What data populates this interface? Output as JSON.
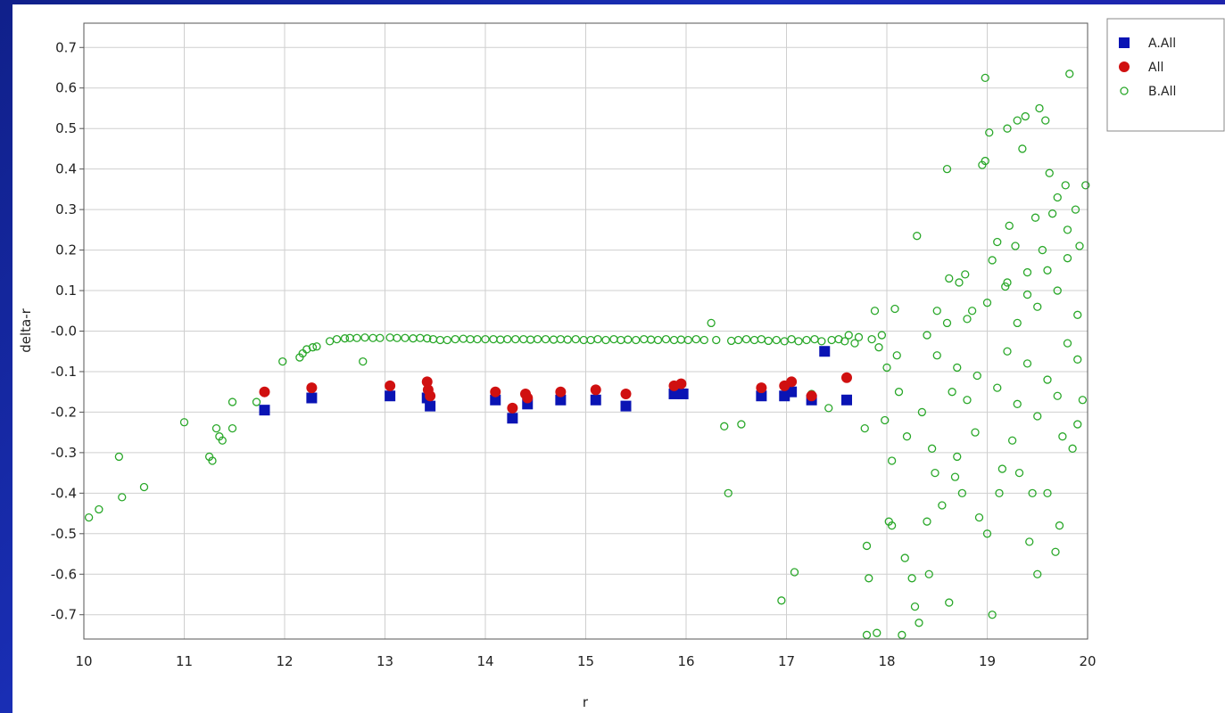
{
  "chart_data": {
    "type": "scatter",
    "title": "",
    "xlabel": "r",
    "ylabel": "delta-r",
    "xlim": [
      10,
      20
    ],
    "ylim": [
      -0.76,
      0.76
    ],
    "xticks": [
      "10",
      "11",
      "12",
      "13",
      "14",
      "15",
      "16",
      "17",
      "18",
      "19",
      "20"
    ],
    "yticks": [
      "0.7",
      "0.6",
      "0.5",
      "0.4",
      "0.3",
      "0.2",
      "0.1",
      "-0.0",
      "-0.1",
      "-0.2",
      "-0.3",
      "-0.4",
      "-0.5",
      "-0.6",
      "-0.7"
    ],
    "grid": true,
    "legend_position": "top-right-outside",
    "series": [
      {
        "name": "A.All",
        "marker": "square",
        "color": "#0a14b4",
        "points": [
          [
            11.8,
            -0.195
          ],
          [
            12.27,
            -0.165
          ],
          [
            13.05,
            -0.16
          ],
          [
            13.42,
            -0.165
          ],
          [
            13.45,
            -0.185
          ],
          [
            14.1,
            -0.17
          ],
          [
            14.27,
            -0.215
          ],
          [
            14.42,
            -0.18
          ],
          [
            14.75,
            -0.17
          ],
          [
            15.1,
            -0.17
          ],
          [
            15.4,
            -0.185
          ],
          [
            15.88,
            -0.155
          ],
          [
            15.97,
            -0.155
          ],
          [
            16.75,
            -0.16
          ],
          [
            16.98,
            -0.16
          ],
          [
            17.05,
            -0.15
          ],
          [
            17.25,
            -0.17
          ],
          [
            17.38,
            -0.05
          ],
          [
            17.6,
            -0.17
          ]
        ]
      },
      {
        "name": "All",
        "marker": "circle",
        "color": "#d01010",
        "points": [
          [
            11.8,
            -0.15
          ],
          [
            12.27,
            -0.14
          ],
          [
            13.05,
            -0.135
          ],
          [
            13.42,
            -0.125
          ],
          [
            13.43,
            -0.145
          ],
          [
            13.45,
            -0.16
          ],
          [
            14.1,
            -0.15
          ],
          [
            14.27,
            -0.19
          ],
          [
            14.4,
            -0.155
          ],
          [
            14.42,
            -0.165
          ],
          [
            14.75,
            -0.15
          ],
          [
            15.1,
            -0.145
          ],
          [
            15.4,
            -0.155
          ],
          [
            15.88,
            -0.135
          ],
          [
            15.95,
            -0.13
          ],
          [
            16.75,
            -0.14
          ],
          [
            16.98,
            -0.135
          ],
          [
            17.05,
            -0.125
          ],
          [
            17.25,
            -0.16
          ],
          [
            17.6,
            -0.115
          ]
        ]
      },
      {
        "name": "B.All",
        "marker": "open-circle",
        "color": "#2aa82a",
        "points": [
          [
            10.05,
            -0.46
          ],
          [
            10.15,
            -0.44
          ],
          [
            10.35,
            -0.31
          ],
          [
            10.38,
            -0.41
          ],
          [
            10.6,
            -0.385
          ],
          [
            11.0,
            -0.225
          ],
          [
            11.25,
            -0.31
          ],
          [
            11.28,
            -0.32
          ],
          [
            11.32,
            -0.24
          ],
          [
            11.35,
            -0.26
          ],
          [
            11.38,
            -0.27
          ],
          [
            11.48,
            -0.24
          ],
          [
            11.48,
            -0.175
          ],
          [
            11.72,
            -0.175
          ],
          [
            11.98,
            -0.075
          ],
          [
            12.15,
            -0.065
          ],
          [
            12.18,
            -0.055
          ],
          [
            12.22,
            -0.045
          ],
          [
            12.28,
            -0.04
          ],
          [
            12.32,
            -0.038
          ],
          [
            12.45,
            -0.025
          ],
          [
            12.52,
            -0.02
          ],
          [
            12.6,
            -0.018
          ],
          [
            12.65,
            -0.017
          ],
          [
            12.72,
            -0.017
          ],
          [
            12.78,
            -0.075
          ],
          [
            12.8,
            -0.016
          ],
          [
            12.88,
            -0.017
          ],
          [
            12.95,
            -0.017
          ],
          [
            13.05,
            -0.016
          ],
          [
            13.12,
            -0.017
          ],
          [
            13.2,
            -0.017
          ],
          [
            13.28,
            -0.018
          ],
          [
            13.35,
            -0.017
          ],
          [
            13.42,
            -0.018
          ],
          [
            13.48,
            -0.02
          ],
          [
            13.55,
            -0.022
          ],
          [
            13.62,
            -0.022
          ],
          [
            13.7,
            -0.02
          ],
          [
            13.78,
            -0.019
          ],
          [
            13.85,
            -0.02
          ],
          [
            13.92,
            -0.02
          ],
          [
            14.0,
            -0.02
          ],
          [
            14.08,
            -0.02
          ],
          [
            14.15,
            -0.021
          ],
          [
            14.22,
            -0.02
          ],
          [
            14.3,
            -0.02
          ],
          [
            14.38,
            -0.02
          ],
          [
            14.45,
            -0.021
          ],
          [
            14.52,
            -0.02
          ],
          [
            14.6,
            -0.02
          ],
          [
            14.68,
            -0.021
          ],
          [
            14.75,
            -0.02
          ],
          [
            14.82,
            -0.021
          ],
          [
            14.9,
            -0.02
          ],
          [
            14.98,
            -0.022
          ],
          [
            15.05,
            -0.022
          ],
          [
            15.12,
            -0.02
          ],
          [
            15.2,
            -0.022
          ],
          [
            15.28,
            -0.02
          ],
          [
            15.35,
            -0.022
          ],
          [
            15.42,
            -0.021
          ],
          [
            15.5,
            -0.022
          ],
          [
            15.58,
            -0.02
          ],
          [
            15.65,
            -0.021
          ],
          [
            15.72,
            -0.022
          ],
          [
            15.8,
            -0.02
          ],
          [
            15.88,
            -0.022
          ],
          [
            15.95,
            -0.021
          ],
          [
            16.02,
            -0.022
          ],
          [
            16.1,
            -0.02
          ],
          [
            16.18,
            -0.022
          ],
          [
            16.25,
            0.02
          ],
          [
            16.3,
            -0.022
          ],
          [
            16.38,
            -0.235
          ],
          [
            16.42,
            -0.4
          ],
          [
            16.45,
            -0.024
          ],
          [
            16.52,
            -0.022
          ],
          [
            16.55,
            -0.23
          ],
          [
            16.6,
            -0.02
          ],
          [
            16.68,
            -0.022
          ],
          [
            16.75,
            -0.02
          ],
          [
            16.82,
            -0.024
          ],
          [
            16.9,
            -0.022
          ],
          [
            16.95,
            -0.665
          ],
          [
            16.98,
            -0.025
          ],
          [
            17.05,
            -0.02
          ],
          [
            17.08,
            -0.595
          ],
          [
            17.12,
            -0.025
          ],
          [
            17.2,
            -0.022
          ],
          [
            17.25,
            -0.155
          ],
          [
            17.28,
            -0.02
          ],
          [
            17.35,
            -0.025
          ],
          [
            17.42,
            -0.19
          ],
          [
            17.45,
            -0.022
          ],
          [
            17.52,
            -0.02
          ],
          [
            17.58,
            -0.025
          ],
          [
            17.62,
            -0.01
          ],
          [
            17.68,
            -0.03
          ],
          [
            17.72,
            -0.015
          ],
          [
            17.78,
            -0.24
          ],
          [
            17.8,
            -0.53
          ],
          [
            17.8,
            -0.75
          ],
          [
            17.82,
            -0.61
          ],
          [
            17.85,
            -0.02
          ],
          [
            17.88,
            0.05
          ],
          [
            17.9,
            -0.745
          ],
          [
            17.92,
            -0.04
          ],
          [
            17.95,
            -0.01
          ],
          [
            17.98,
            -0.22
          ],
          [
            18.0,
            -0.09
          ],
          [
            18.02,
            -0.47
          ],
          [
            18.05,
            -0.32
          ],
          [
            18.05,
            -0.48
          ],
          [
            18.08,
            0.055
          ],
          [
            18.1,
            -0.06
          ],
          [
            18.12,
            -0.15
          ],
          [
            18.15,
            -0.75
          ],
          [
            18.18,
            -0.56
          ],
          [
            18.2,
            -0.26
          ],
          [
            18.25,
            -0.61
          ],
          [
            18.28,
            -0.68
          ],
          [
            18.3,
            0.235
          ],
          [
            18.32,
            -0.72
          ],
          [
            18.35,
            -0.2
          ],
          [
            18.4,
            -0.47
          ],
          [
            18.42,
            -0.6
          ],
          [
            18.45,
            -0.29
          ],
          [
            18.48,
            -0.35
          ],
          [
            18.5,
            0.05
          ],
          [
            18.55,
            -0.43
          ],
          [
            18.6,
            0.4
          ],
          [
            18.62,
            -0.67
          ],
          [
            18.62,
            0.13
          ],
          [
            18.65,
            -0.15
          ],
          [
            18.68,
            -0.36
          ],
          [
            18.7,
            -0.31
          ],
          [
            18.72,
            0.12
          ],
          [
            18.75,
            -0.4
          ],
          [
            18.78,
            0.14
          ],
          [
            18.8,
            -0.17
          ],
          [
            18.85,
            0.05
          ],
          [
            18.88,
            -0.25
          ],
          [
            18.92,
            -0.46
          ],
          [
            18.95,
            0.41
          ],
          [
            18.98,
            0.42
          ],
          [
            18.98,
            0.625
          ],
          [
            19.0,
            -0.5
          ],
          [
            19.02,
            0.49
          ],
          [
            19.05,
            -0.7
          ],
          [
            19.05,
            0.175
          ],
          [
            19.1,
            0.22
          ],
          [
            19.12,
            -0.4
          ],
          [
            19.15,
            -0.34
          ],
          [
            19.18,
            0.11
          ],
          [
            19.2,
            0.5
          ],
          [
            19.22,
            0.26
          ],
          [
            19.25,
            -0.27
          ],
          [
            19.28,
            0.21
          ],
          [
            19.3,
            0.52
          ],
          [
            19.32,
            -0.35
          ],
          [
            19.35,
            0.45
          ],
          [
            19.38,
            0.53
          ],
          [
            19.4,
            0.145
          ],
          [
            19.42,
            -0.52
          ],
          [
            19.45,
            -0.4
          ],
          [
            19.48,
            0.28
          ],
          [
            19.5,
            -0.6
          ],
          [
            19.52,
            0.55
          ],
          [
            19.55,
            0.2
          ],
          [
            19.58,
            0.52
          ],
          [
            19.6,
            -0.4
          ],
          [
            19.62,
            0.39
          ],
          [
            19.65,
            0.29
          ],
          [
            19.68,
            -0.545
          ],
          [
            19.7,
            0.33
          ],
          [
            19.72,
            -0.48
          ],
          [
            19.75,
            -0.26
          ],
          [
            19.78,
            0.36
          ],
          [
            19.8,
            0.25
          ],
          [
            19.82,
            0.635
          ],
          [
            19.85,
            -0.29
          ],
          [
            19.88,
            0.3
          ],
          [
            19.9,
            -0.23
          ],
          [
            19.92,
            0.21
          ],
          [
            19.95,
            -0.17
          ],
          [
            19.98,
            0.36
          ],
          [
            19.2,
            -0.05
          ],
          [
            19.3,
            0.02
          ],
          [
            19.4,
            -0.08
          ],
          [
            19.5,
            0.06
          ],
          [
            19.6,
            -0.12
          ],
          [
            19.7,
            0.1
          ],
          [
            19.8,
            -0.03
          ],
          [
            19.9,
            0.04
          ],
          [
            18.4,
            -0.01
          ],
          [
            18.5,
            -0.06
          ],
          [
            18.6,
            0.02
          ],
          [
            18.7,
            -0.09
          ],
          [
            18.8,
            0.03
          ],
          [
            18.9,
            -0.11
          ],
          [
            19.0,
            0.07
          ],
          [
            19.1,
            -0.14
          ],
          [
            19.2,
            0.12
          ],
          [
            19.3,
            -0.18
          ],
          [
            19.4,
            0.09
          ],
          [
            19.5,
            -0.21
          ],
          [
            19.6,
            0.15
          ],
          [
            19.7,
            -0.16
          ],
          [
            19.8,
            0.18
          ],
          [
            19.9,
            -0.07
          ]
        ]
      }
    ],
    "legend": [
      {
        "label": "A.All",
        "marker": "square",
        "color": "#0a14b4"
      },
      {
        "label": "All",
        "marker": "circle",
        "color": "#d01010"
      },
      {
        "label": "B.All",
        "marker": "open-circle",
        "color": "#2aa82a"
      }
    ]
  }
}
